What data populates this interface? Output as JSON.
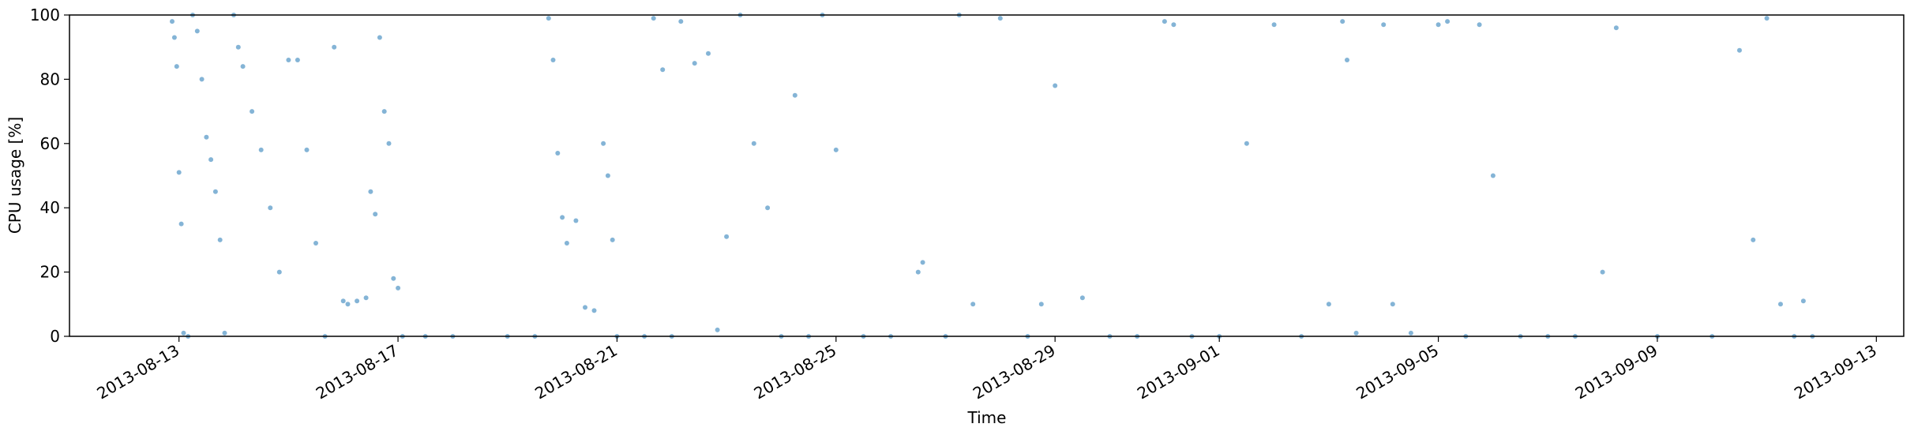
{
  "chart_data": {
    "type": "scatter",
    "xlabel": "Time",
    "ylabel": "CPU usage [%]",
    "xlim": [
      "2013-08-11T00:00",
      "2013-09-13T12:00"
    ],
    "ylim": [
      0,
      100
    ],
    "x_ticks": [
      "2013-08-13",
      "2013-08-17",
      "2013-08-21",
      "2013-08-25",
      "2013-08-29",
      "2013-09-01",
      "2013-09-05",
      "2013-09-09",
      "2013-09-13"
    ],
    "y_ticks": [
      0,
      20,
      40,
      60,
      80,
      100
    ],
    "marker_color": "#1f77b4",
    "grid": false,
    "series": [
      {
        "name": "",
        "points": [
          [
            "2013-08-12T21:00",
            98
          ],
          [
            "2013-08-12T22:00",
            93
          ],
          [
            "2013-08-12T23:00",
            84
          ],
          [
            "2013-08-13T00:00",
            51
          ],
          [
            "2013-08-13T01:00",
            35
          ],
          [
            "2013-08-13T02:00",
            1
          ],
          [
            "2013-08-13T04:00",
            0
          ],
          [
            "2013-08-13T06:00",
            100
          ],
          [
            "2013-08-13T08:00",
            95
          ],
          [
            "2013-08-13T10:00",
            80
          ],
          [
            "2013-08-13T12:00",
            62
          ],
          [
            "2013-08-13T14:00",
            55
          ],
          [
            "2013-08-13T16:00",
            45
          ],
          [
            "2013-08-13T18:00",
            30
          ],
          [
            "2013-08-13T20:00",
            1
          ],
          [
            "2013-08-14T00:00",
            100
          ],
          [
            "2013-08-14T02:00",
            90
          ],
          [
            "2013-08-14T04:00",
            84
          ],
          [
            "2013-08-14T08:00",
            70
          ],
          [
            "2013-08-14T12:00",
            58
          ],
          [
            "2013-08-14T16:00",
            40
          ],
          [
            "2013-08-14T20:00",
            20
          ],
          [
            "2013-08-15T00:00",
            86
          ],
          [
            "2013-08-15T04:00",
            86
          ],
          [
            "2013-08-15T08:00",
            58
          ],
          [
            "2013-08-15T12:00",
            29
          ],
          [
            "2013-08-15T16:00",
            0
          ],
          [
            "2013-08-15T20:00",
            90
          ],
          [
            "2013-08-16T00:00",
            11
          ],
          [
            "2013-08-16T02:00",
            10
          ],
          [
            "2013-08-16T06:00",
            11
          ],
          [
            "2013-08-16T10:00",
            12
          ],
          [
            "2013-08-16T12:00",
            45
          ],
          [
            "2013-08-16T14:00",
            38
          ],
          [
            "2013-08-16T16:00",
            93
          ],
          [
            "2013-08-16T18:00",
            70
          ],
          [
            "2013-08-16T20:00",
            60
          ],
          [
            "2013-08-16T22:00",
            18
          ],
          [
            "2013-08-17T00:00",
            15
          ],
          [
            "2013-08-17T02:00",
            0
          ],
          [
            "2013-08-17T12:00",
            0
          ],
          [
            "2013-08-18T00:00",
            0
          ],
          [
            "2013-08-19T00:00",
            0
          ],
          [
            "2013-08-19T12:00",
            0
          ],
          [
            "2013-08-19T18:00",
            99
          ],
          [
            "2013-08-19T20:00",
            86
          ],
          [
            "2013-08-19T22:00",
            57
          ],
          [
            "2013-08-20T00:00",
            37
          ],
          [
            "2013-08-20T02:00",
            29
          ],
          [
            "2013-08-20T06:00",
            36
          ],
          [
            "2013-08-20T10:00",
            9
          ],
          [
            "2013-08-20T14:00",
            8
          ],
          [
            "2013-08-20T18:00",
            60
          ],
          [
            "2013-08-20T20:00",
            50
          ],
          [
            "2013-08-20T22:00",
            30
          ],
          [
            "2013-08-21T00:00",
            0
          ],
          [
            "2013-08-21T12:00",
            0
          ],
          [
            "2013-08-21T16:00",
            99
          ],
          [
            "2013-08-21T20:00",
            83
          ],
          [
            "2013-08-22T00:00",
            0
          ],
          [
            "2013-08-22T04:00",
            98
          ],
          [
            "2013-08-22T10:00",
            85
          ],
          [
            "2013-08-22T16:00",
            88
          ],
          [
            "2013-08-22T20:00",
            2
          ],
          [
            "2013-08-23T00:00",
            31
          ],
          [
            "2013-08-23T06:00",
            100
          ],
          [
            "2013-08-23T12:00",
            60
          ],
          [
            "2013-08-23T18:00",
            40
          ],
          [
            "2013-08-24T00:00",
            0
          ],
          [
            "2013-08-24T06:00",
            75
          ],
          [
            "2013-08-24T12:00",
            0
          ],
          [
            "2013-08-24T18:00",
            100
          ],
          [
            "2013-08-25T00:00",
            58
          ],
          [
            "2013-08-25T12:00",
            0
          ],
          [
            "2013-08-26T00:00",
            0
          ],
          [
            "2013-08-26T12:00",
            20
          ],
          [
            "2013-08-26T14:00",
            23
          ],
          [
            "2013-08-27T00:00",
            0
          ],
          [
            "2013-08-27T06:00",
            100
          ],
          [
            "2013-08-27T12:00",
            10
          ],
          [
            "2013-08-28T00:00",
            99
          ],
          [
            "2013-08-28T12:00",
            0
          ],
          [
            "2013-08-28T18:00",
            10
          ],
          [
            "2013-08-29T00:00",
            78
          ],
          [
            "2013-08-29T12:00",
            12
          ],
          [
            "2013-08-30T00:00",
            0
          ],
          [
            "2013-08-30T12:00",
            0
          ],
          [
            "2013-08-31T00:00",
            98
          ],
          [
            "2013-08-31T04:00",
            97
          ],
          [
            "2013-08-31T12:00",
            0
          ],
          [
            "2013-09-01T00:00",
            0
          ],
          [
            "2013-09-01T12:00",
            60
          ],
          [
            "2013-09-02T00:00",
            97
          ],
          [
            "2013-09-02T12:00",
            0
          ],
          [
            "2013-09-03T00:00",
            10
          ],
          [
            "2013-09-03T06:00",
            98
          ],
          [
            "2013-09-03T08:00",
            86
          ],
          [
            "2013-09-03T12:00",
            1
          ],
          [
            "2013-09-04T00:00",
            97
          ],
          [
            "2013-09-04T04:00",
            10
          ],
          [
            "2013-09-04T12:00",
            1
          ],
          [
            "2013-09-05T00:00",
            97
          ],
          [
            "2013-09-05T04:00",
            98
          ],
          [
            "2013-09-05T12:00",
            0
          ],
          [
            "2013-09-05T18:00",
            97
          ],
          [
            "2013-09-06T00:00",
            50
          ],
          [
            "2013-09-06T12:00",
            0
          ],
          [
            "2013-09-07T00:00",
            0
          ],
          [
            "2013-09-07T12:00",
            0
          ],
          [
            "2013-09-08T00:00",
            20
          ],
          [
            "2013-09-08T06:00",
            96
          ],
          [
            "2013-09-09T00:00",
            0
          ],
          [
            "2013-09-10T00:00",
            0
          ],
          [
            "2013-09-10T12:00",
            89
          ],
          [
            "2013-09-10T18:00",
            30
          ],
          [
            "2013-09-11T00:00",
            99
          ],
          [
            "2013-09-11T06:00",
            10
          ],
          [
            "2013-09-11T12:00",
            0
          ],
          [
            "2013-09-11T16:00",
            11
          ],
          [
            "2013-09-11T20:00",
            0
          ]
        ]
      }
    ]
  }
}
